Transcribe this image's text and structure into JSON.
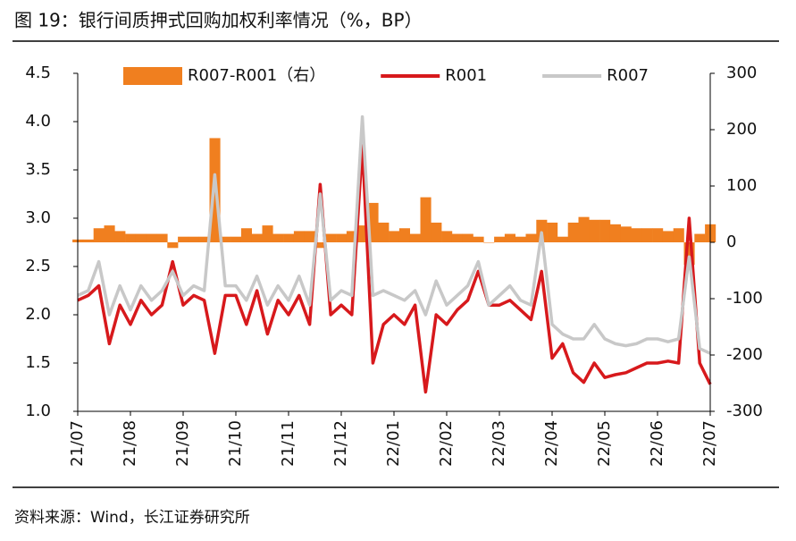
{
  "chart_data": {
    "type": "combo",
    "title": "图 19：银行间质押式回购加权利率情况（%，BP）",
    "source": "资料来源：Wind，长江证券研究所",
    "categories": [
      "21/07",
      null,
      null,
      null,
      null,
      "21/08",
      null,
      null,
      null,
      null,
      "21/09",
      null,
      null,
      null,
      null,
      "21/10",
      null,
      null,
      null,
      null,
      "21/11",
      null,
      null,
      null,
      null,
      "21/12",
      null,
      null,
      null,
      null,
      "22/01",
      null,
      null,
      null,
      null,
      "22/02",
      null,
      null,
      null,
      null,
      "22/03",
      null,
      null,
      null,
      null,
      "22/04",
      null,
      null,
      null,
      null,
      "22/05",
      null,
      null,
      null,
      null,
      "22/06",
      null,
      null,
      null,
      null,
      "22/07"
    ],
    "series": [
      {
        "name": "R007-R001（右）",
        "type": "bar",
        "axis": "y2",
        "color": "#f07f1f",
        "values": [
          5,
          5,
          25,
          30,
          20,
          15,
          15,
          15,
          15,
          -10,
          10,
          10,
          10,
          185,
          10,
          10,
          25,
          15,
          30,
          15,
          15,
          20,
          20,
          -10,
          15,
          15,
          20,
          30,
          70,
          35,
          20,
          25,
          15,
          80,
          35,
          20,
          15,
          15,
          10,
          0,
          10,
          15,
          10,
          15,
          40,
          35,
          10,
          35,
          45,
          40,
          40,
          32,
          28,
          25,
          25,
          25,
          20,
          25,
          -40,
          15,
          32
        ]
      },
      {
        "name": "R001",
        "type": "line",
        "color": "#d7191c",
        "values": [
          2.15,
          2.2,
          2.3,
          1.7,
          2.1,
          1.9,
          2.15,
          2.0,
          2.1,
          2.55,
          2.1,
          2.2,
          2.15,
          1.6,
          2.2,
          2.2,
          1.9,
          2.25,
          1.8,
          2.15,
          2.0,
          2.2,
          1.9,
          3.35,
          2.0,
          2.1,
          2.0,
          3.75,
          1.5,
          1.9,
          2.0,
          1.9,
          2.1,
          1.2,
          2.0,
          1.9,
          2.05,
          2.15,
          2.45,
          2.1,
          2.1,
          2.15,
          2.05,
          1.95,
          2.45,
          1.55,
          1.7,
          1.4,
          1.3,
          1.5,
          1.35,
          1.38,
          1.4,
          1.45,
          1.5,
          1.5,
          1.52,
          1.5,
          3.0,
          1.5,
          1.28
        ]
      },
      {
        "name": "R007",
        "type": "line",
        "color": "#c8c8c8",
        "values": [
          2.2,
          2.25,
          2.55,
          2.0,
          2.3,
          2.05,
          2.3,
          2.15,
          2.25,
          2.45,
          2.2,
          2.3,
          2.25,
          3.45,
          2.3,
          2.3,
          2.15,
          2.4,
          2.1,
          2.3,
          2.15,
          2.4,
          2.1,
          3.25,
          2.15,
          2.25,
          2.2,
          4.05,
          2.2,
          2.25,
          2.2,
          2.15,
          2.25,
          2.0,
          2.35,
          2.1,
          2.2,
          2.3,
          2.55,
          2.1,
          2.2,
          2.3,
          2.15,
          2.1,
          2.85,
          1.9,
          1.8,
          1.75,
          1.75,
          1.9,
          1.75,
          1.7,
          1.68,
          1.7,
          1.75,
          1.75,
          1.72,
          1.75,
          2.6,
          1.65,
          1.6
        ]
      }
    ],
    "ylim": [
      1.0,
      4.5
    ],
    "yticks": [
      {
        "value": 1.0,
        "label": "1.0"
      },
      1.5,
      {
        "value": 2.0,
        "label": "2.0"
      },
      2.5,
      {
        "value": 3.0,
        "label": "3.0"
      },
      3.5,
      {
        "value": 4.0,
        "label": "4.0"
      },
      4.5
    ],
    "y2lim": [
      -300,
      300
    ],
    "y2ticks": [
      -300,
      -200,
      -100,
      0,
      100,
      200,
      300
    ],
    "legend": "top"
  }
}
